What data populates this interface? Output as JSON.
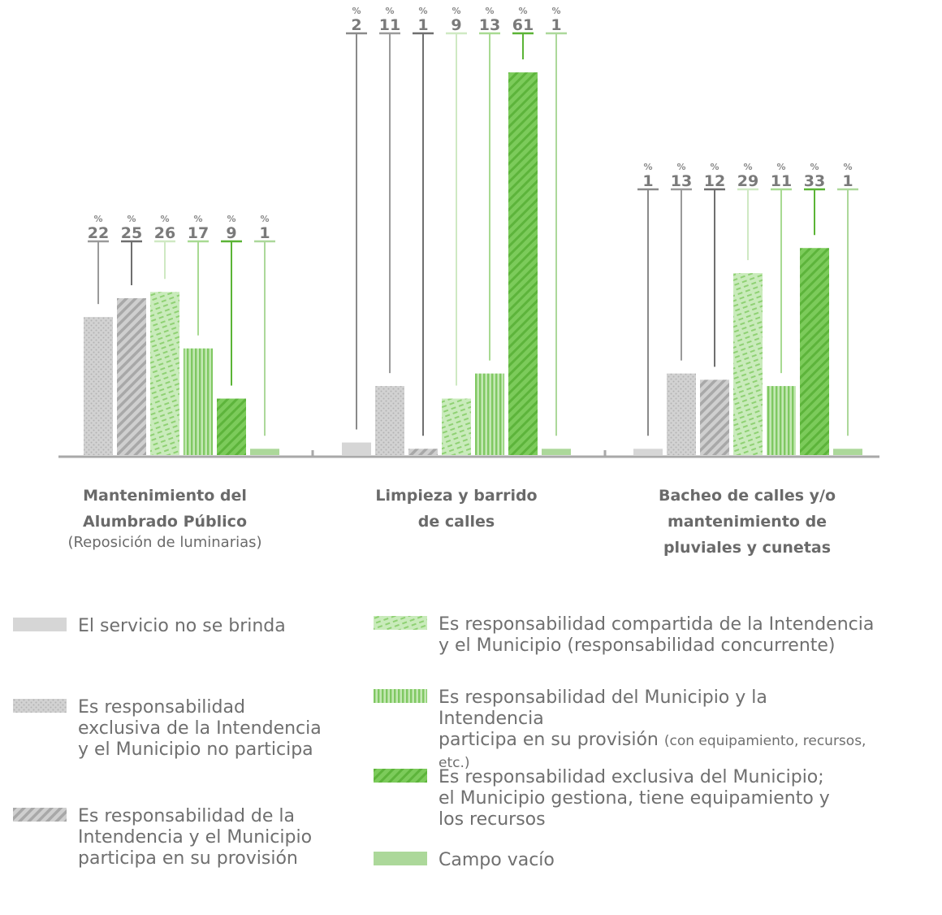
{
  "chart_data": {
    "type": "bar",
    "unit": "%",
    "categories": [
      {
        "title": "Mantenimiento del Alumbrado Público",
        "subtitle": "(Reposición de luminarias)"
      },
      {
        "title": "Limpieza y barrido de calles",
        "subtitle": ""
      },
      {
        "title": "Bacheo de calles y/o mantenimiento de pluviales y cunetas",
        "subtitle": ""
      }
    ],
    "series": [
      {
        "name": "El servicio no se brinda",
        "color": "#d6d6d6",
        "pattern": "solid-gray",
        "values": [
          null,
          2,
          1
        ]
      },
      {
        "name": "Es responsabilidad exclusiva de la Intendencia y el Municipio no participa",
        "color": "#cfcfcf",
        "pattern": "dots",
        "values": [
          22,
          11,
          13
        ]
      },
      {
        "name": "Es responsabilidad de la Intendencia y el Municipio participa en su provisión",
        "color": "#bdbdbd",
        "pattern": "diagonal-gray",
        "values": [
          25,
          1,
          12
        ]
      },
      {
        "name": "Es responsabilidad compartida de la Intendencia y el Municipio (responsabilidad concurrente)",
        "color": "#b5e0a3",
        "pattern": "dashes-green",
        "values": [
          26,
          9,
          29
        ]
      },
      {
        "name": "Es responsabilidad del Municipio y la Intendencia participa en su provisión",
        "name_small": "(con equipamiento, recursos, etc.)",
        "color": "#96d47e",
        "pattern": "vertical-green",
        "values": [
          17,
          13,
          11
        ]
      },
      {
        "name": "Es responsabilidad exclusiva del Municipio; el Municipio gestiona, tiene equipamiento y los recursos",
        "color": "#6cc04a",
        "pattern": "diagonal-green",
        "values": [
          9,
          61,
          33
        ]
      },
      {
        "name": "Campo vacío",
        "color": "#acd89a",
        "pattern": "solid-green",
        "values": [
          1,
          1,
          1
        ]
      }
    ]
  },
  "legend_lines": [
    [
      "El servicio no se brinda"
    ],
    [
      "Es responsabilidad",
      "exclusiva de la Intendencia",
      "y el Municipio no participa"
    ],
    [
      "Es responsabilidad de la",
      "Intendencia y el Municipio",
      "participa en su provisión"
    ],
    [
      "Es responsabilidad compartida de la Intendencia",
      "y el Municipio (responsabilidad concurrente)"
    ],
    [
      "Es responsabilidad del Municipio y la Intendencia",
      "participa en su provisión"
    ],
    [
      "Es responsabilidad exclusiva del Municipio;",
      "el Municipio gestiona, tiene equipamiento y",
      "los recursos"
    ],
    [
      "Campo vacío"
    ]
  ]
}
